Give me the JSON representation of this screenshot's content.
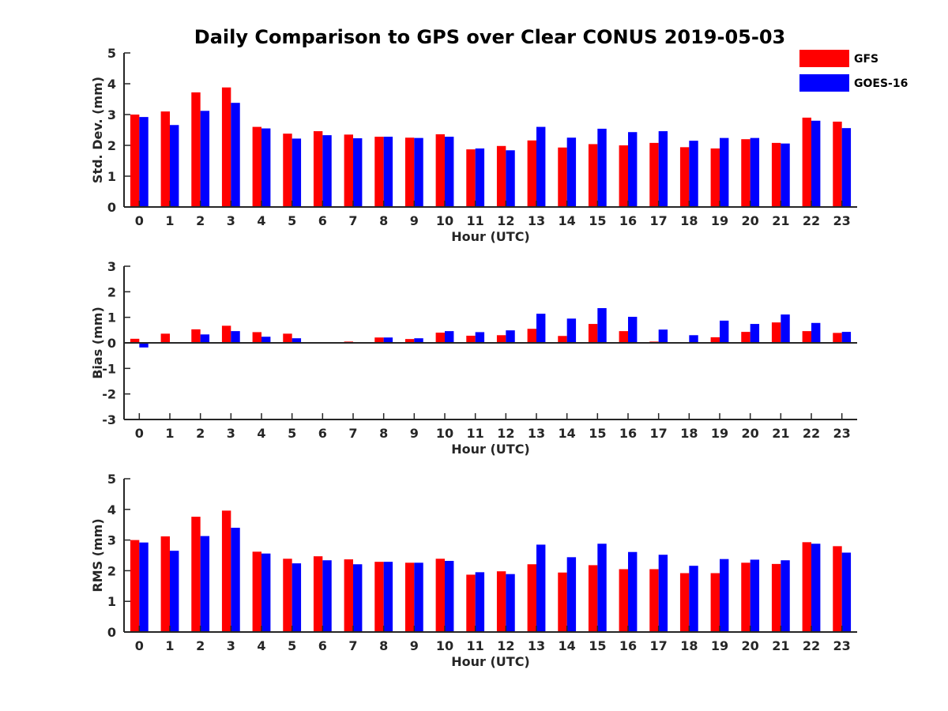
{
  "figure_title": "Daily Comparison to GPS over Clear CONUS 2019-05-03",
  "colors": {
    "gfs": "#ff0000",
    "goes": "#0000ff",
    "axis": "#262626"
  },
  "legend": [
    {
      "name": "GFS",
      "color": "#ff0000"
    },
    {
      "name": "GOES-16",
      "color": "#0000ff"
    }
  ],
  "legend_position": "top-right",
  "chart_data": [
    {
      "type": "bar",
      "title": "Daily Comparison to GPS over Clear CONUS 2019-05-03",
      "xlabel": "Hour (UTC)",
      "ylabel": "Std. Dev. (mm)",
      "ylim": [
        0,
        5
      ],
      "yticks": [
        0,
        1,
        2,
        3,
        4,
        5
      ],
      "categories": [
        "0",
        "1",
        "2",
        "3",
        "4",
        "5",
        "6",
        "7",
        "8",
        "9",
        "10",
        "11",
        "12",
        "13",
        "14",
        "15",
        "16",
        "17",
        "18",
        "19",
        "20",
        "21",
        "22",
        "23"
      ],
      "series": [
        {
          "name": "GFS",
          "values": [
            3.0,
            3.1,
            3.72,
            3.88,
            2.6,
            2.38,
            2.46,
            2.35,
            2.28,
            2.25,
            2.36,
            1.87,
            1.98,
            2.16,
            1.93,
            2.04,
            2.0,
            2.08,
            1.94,
            1.9,
            2.2,
            2.08,
            2.9,
            2.77
          ]
        },
        {
          "name": "GOES-16",
          "values": [
            2.92,
            2.66,
            3.12,
            3.38,
            2.55,
            2.22,
            2.33,
            2.23,
            2.28,
            2.24,
            2.28,
            1.9,
            1.84,
            2.6,
            2.25,
            2.54,
            2.43,
            2.46,
            2.15,
            2.24,
            2.24,
            2.06,
            2.8,
            2.56
          ]
        }
      ]
    },
    {
      "type": "bar",
      "xlabel": "Hour (UTC)",
      "ylabel": "Bias (mm)",
      "ylim": [
        -3,
        3
      ],
      "yticks": [
        -3,
        -2,
        -1,
        0,
        1,
        2,
        3
      ],
      "categories": [
        "0",
        "1",
        "2",
        "3",
        "4",
        "5",
        "6",
        "7",
        "8",
        "9",
        "10",
        "11",
        "12",
        "13",
        "14",
        "15",
        "16",
        "17",
        "18",
        "19",
        "20",
        "21",
        "22",
        "23"
      ],
      "series": [
        {
          "name": "GFS",
          "values": [
            0.16,
            0.36,
            0.53,
            0.67,
            0.42,
            0.36,
            0.03,
            0.05,
            0.21,
            0.15,
            0.4,
            0.28,
            0.3,
            0.55,
            0.27,
            0.74,
            0.46,
            0.05,
            0.03,
            0.22,
            0.43,
            0.8,
            0.46,
            0.39
          ]
        },
        {
          "name": "GOES-16",
          "values": [
            -0.18,
            0.0,
            0.33,
            0.46,
            0.24,
            0.18,
            0.0,
            0.02,
            0.21,
            0.18,
            0.46,
            0.42,
            0.49,
            1.14,
            0.95,
            1.36,
            1.02,
            0.52,
            0.3,
            0.87,
            0.74,
            1.11,
            0.78,
            0.43
          ]
        }
      ]
    },
    {
      "type": "bar",
      "xlabel": "Hour (UTC)",
      "ylabel": "RMS (mm)",
      "ylim": [
        0,
        5
      ],
      "yticks": [
        0,
        1,
        2,
        3,
        4,
        5
      ],
      "categories": [
        "0",
        "1",
        "2",
        "3",
        "4",
        "5",
        "6",
        "7",
        "8",
        "9",
        "10",
        "11",
        "12",
        "13",
        "14",
        "15",
        "16",
        "17",
        "18",
        "19",
        "20",
        "21",
        "22",
        "23"
      ],
      "series": [
        {
          "name": "GFS",
          "values": [
            3.0,
            3.12,
            3.76,
            3.96,
            2.62,
            2.39,
            2.47,
            2.37,
            2.29,
            2.26,
            2.39,
            1.87,
            1.98,
            2.21,
            1.94,
            2.18,
            2.05,
            2.05,
            1.92,
            1.92,
            2.26,
            2.22,
            2.93,
            2.8
          ]
        },
        {
          "name": "GOES-16",
          "values": [
            2.92,
            2.65,
            3.13,
            3.4,
            2.56,
            2.24,
            2.34,
            2.21,
            2.29,
            2.26,
            2.32,
            1.95,
            1.89,
            2.85,
            2.44,
            2.88,
            2.61,
            2.52,
            2.16,
            2.38,
            2.36,
            2.34,
            2.88,
            2.59
          ]
        }
      ]
    }
  ]
}
